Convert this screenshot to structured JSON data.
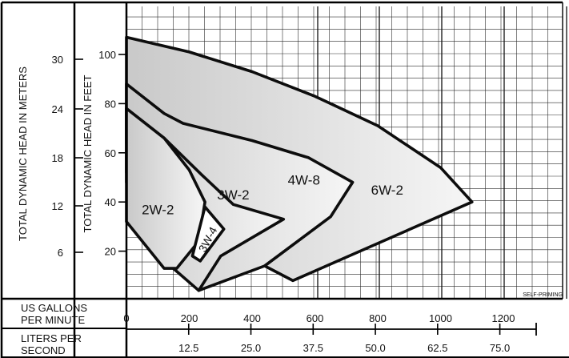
{
  "chart_data": {
    "type": "area",
    "title": "",
    "left_axis_meters": {
      "label": "TOTAL DYNAMIC HEAD IN METERS",
      "tick_labels": [
        "30",
        "24",
        "18",
        "12",
        "6"
      ],
      "ticks": [
        30,
        24,
        18,
        12,
        6
      ]
    },
    "left_axis_feet": {
      "label": "TOTAL DYNAMIC HEAD IN FEET",
      "tick_labels": [
        "100",
        "80",
        "60",
        "40",
        "20"
      ],
      "ticks": [
        100,
        80,
        60,
        40,
        20
      ],
      "ylim": [
        0,
        120
      ]
    },
    "x_axis_gpm": {
      "label_line1": "US GALLONS",
      "label_line2": "PER MINUTE",
      "tick_labels": [
        "0",
        "200",
        "400",
        "600",
        "800",
        "1000",
        "1200"
      ],
      "ticks": [
        0,
        200,
        400,
        600,
        800,
        1000,
        1200
      ],
      "xlim": [
        0,
        1300
      ]
    },
    "x_axis_lps": {
      "label_line1": "LITERS PER",
      "label_line2": "SECOND",
      "tick_labels": [
        "12.5",
        "25.0",
        "37.5",
        "50.0",
        "62.5",
        "75.0"
      ],
      "ticks": [
        12.5,
        25.0,
        37.5,
        50.0,
        62.5,
        75.0
      ]
    },
    "note": "SELF-PRIMING",
    "grid": true,
    "series": [
      {
        "name": "6W-2",
        "color": "#e2e2e2",
        "label_at": [
          830,
          43
        ],
        "outline": [
          [
            0,
            107
          ],
          [
            200,
            101
          ],
          [
            400,
            93
          ],
          [
            600,
            83
          ],
          [
            800,
            71
          ],
          [
            1000,
            54
          ],
          [
            1100,
            40
          ],
          [
            530,
            8
          ],
          [
            440,
            14
          ],
          [
            200,
            38
          ],
          [
            0,
            64
          ]
        ]
      },
      {
        "name": "4W-8",
        "color": "#dadada",
        "label_at": [
          565,
          47
        ],
        "outline": [
          [
            0,
            88
          ],
          [
            120,
            76
          ],
          [
            180,
            72
          ],
          [
            400,
            65
          ],
          [
            580,
            58
          ],
          [
            720,
            48
          ],
          [
            650,
            34
          ],
          [
            440,
            14
          ],
          [
            230,
            4
          ],
          [
            0,
            52
          ]
        ]
      },
      {
        "name": "3W-2",
        "color": "#d4d4d4",
        "label_at": [
          340,
          41
        ],
        "outline": [
          [
            0,
            78
          ],
          [
            120,
            66
          ],
          [
            240,
            51
          ],
          [
            340,
            39
          ],
          [
            500,
            33
          ],
          [
            300,
            18
          ],
          [
            230,
            4
          ],
          [
            140,
            14
          ],
          [
            0,
            48
          ]
        ]
      },
      {
        "name": "2W-2",
        "color": "#d0d0d0",
        "label_at": [
          100,
          35
        ],
        "outline": [
          [
            0,
            78
          ],
          [
            120,
            66
          ],
          [
            200,
            53
          ],
          [
            250,
            40
          ],
          [
            230,
            24
          ],
          [
            160,
            13
          ],
          [
            120,
            13
          ],
          [
            0,
            32
          ]
        ]
      },
      {
        "name": "3W-4",
        "color": "#ffffff",
        "label_at": [
          270,
          24
        ],
        "outline": [
          [
            250,
            38
          ],
          [
            310,
            29
          ],
          [
            235,
            16
          ],
          [
            210,
            18
          ],
          [
            250,
            38
          ]
        ]
      }
    ]
  }
}
